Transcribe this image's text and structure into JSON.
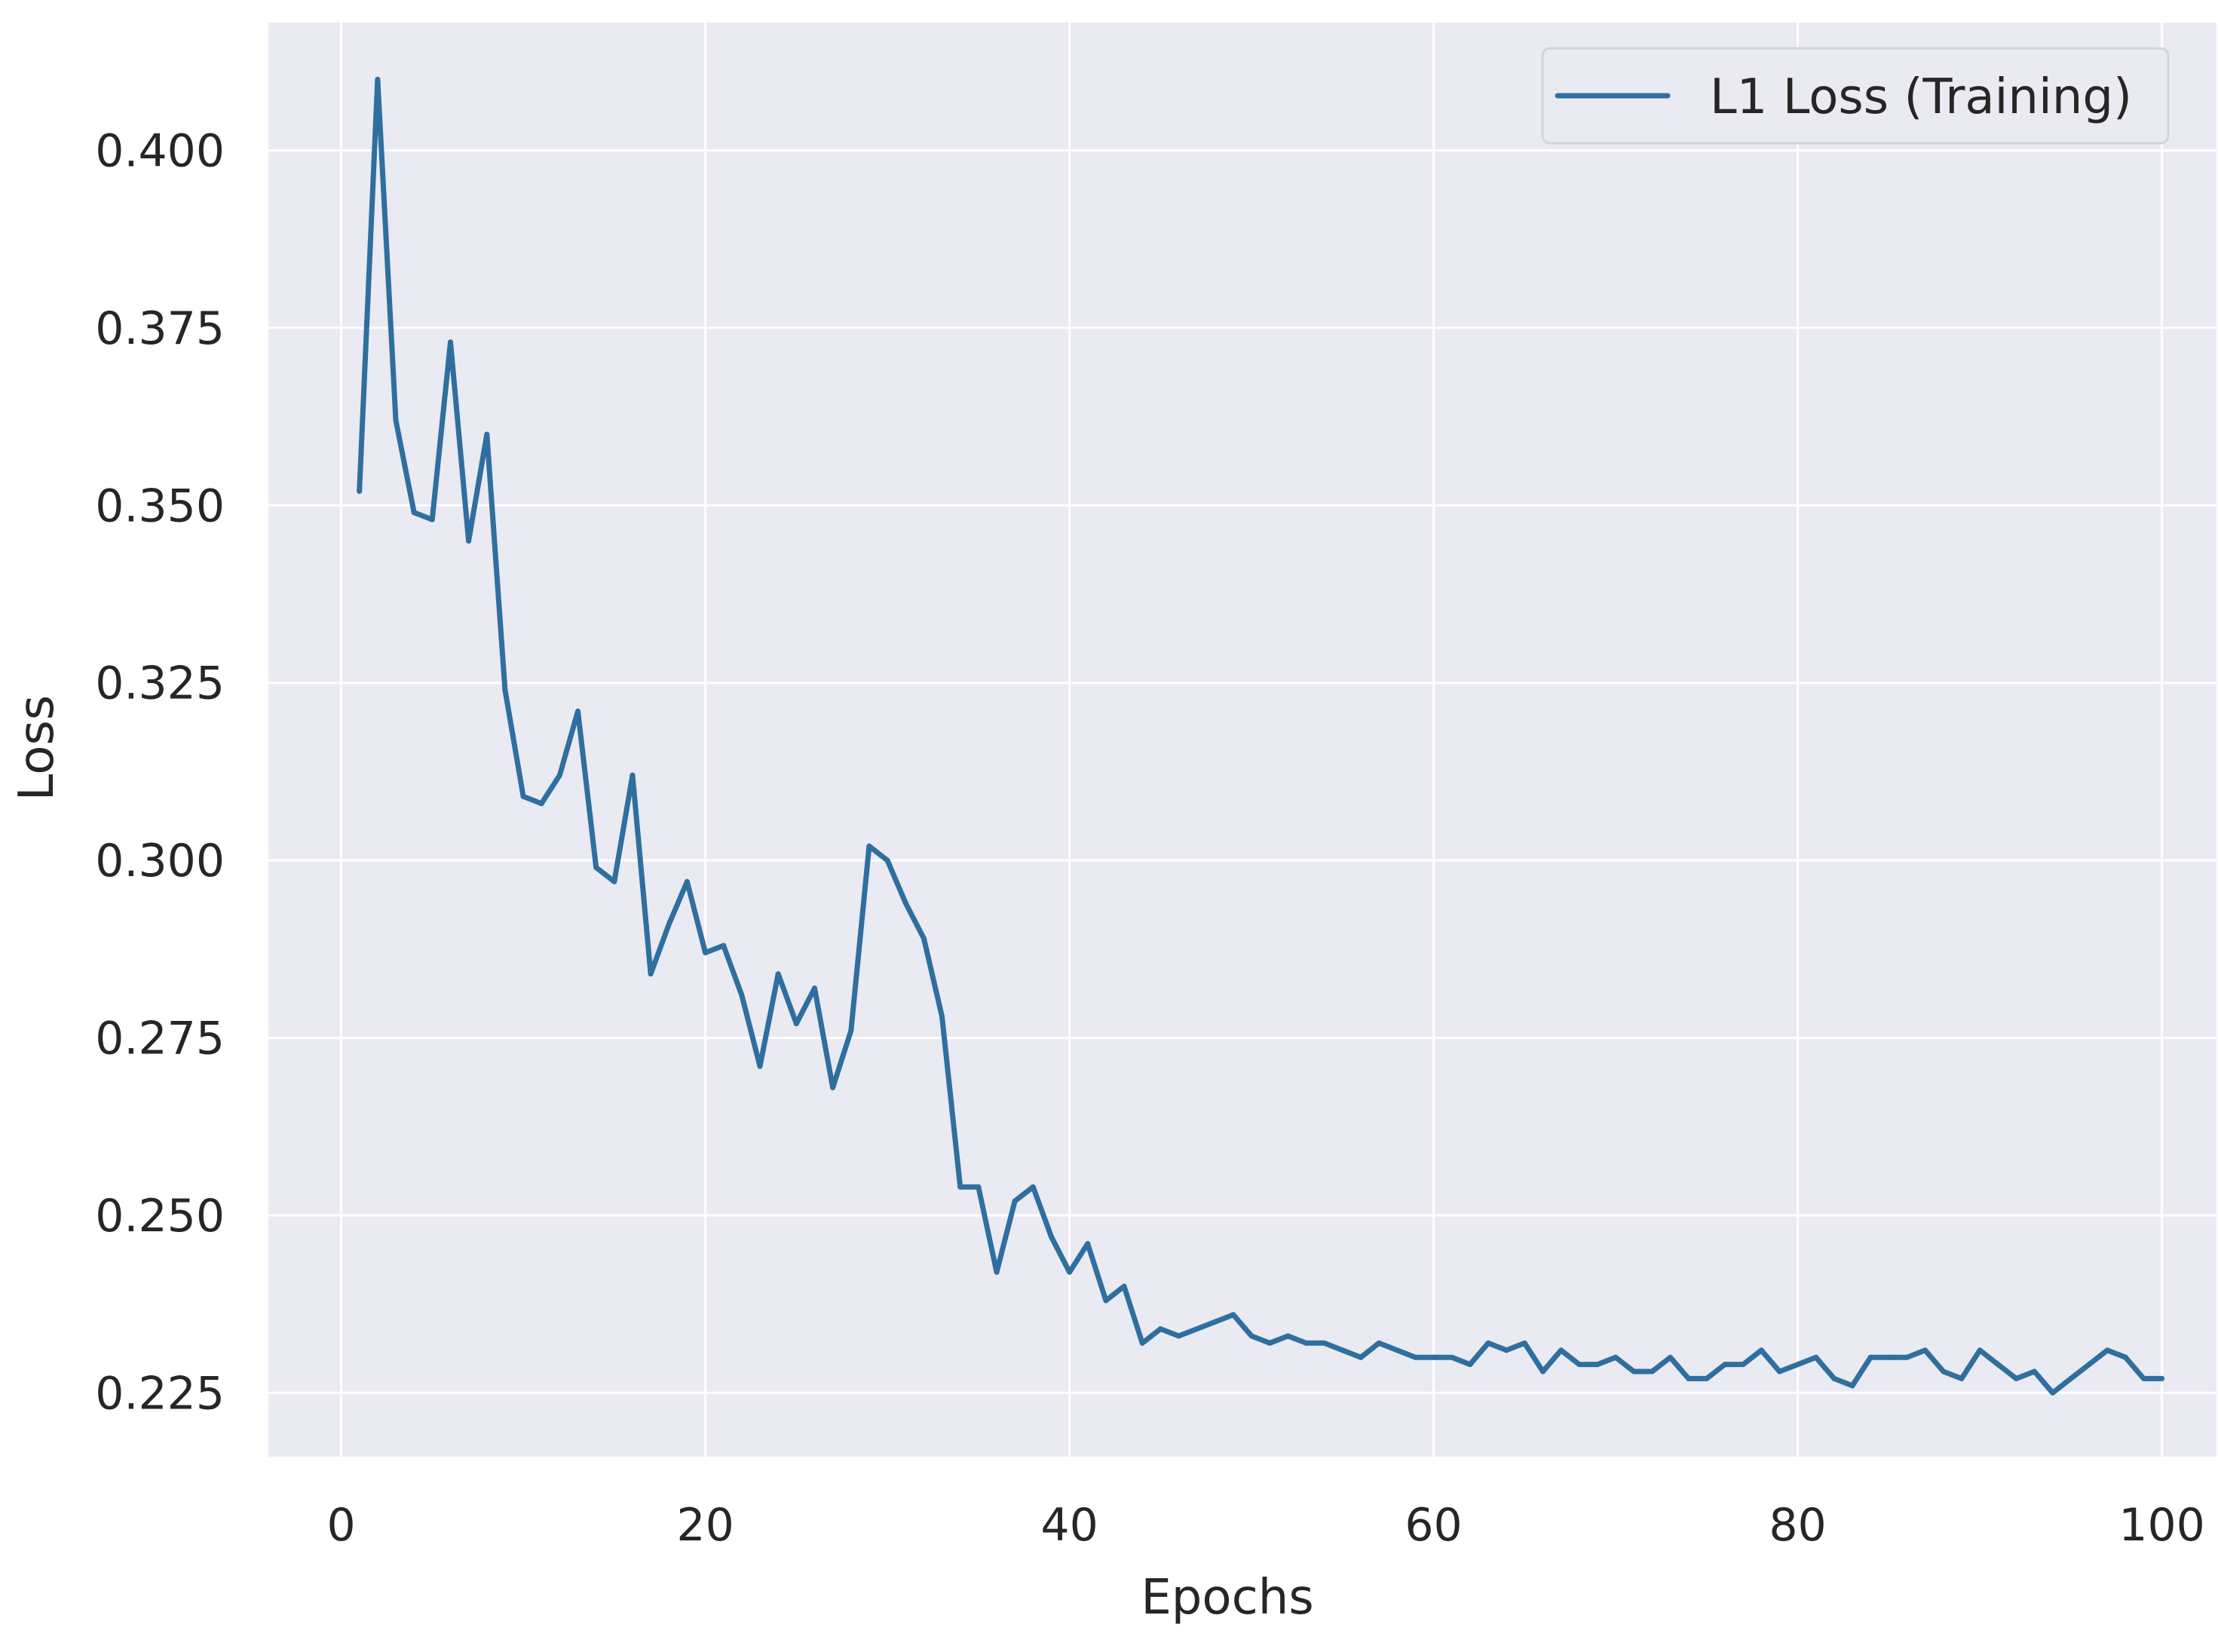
{
  "chart_data": {
    "type": "line",
    "title": "",
    "xlabel": "Epochs",
    "ylabel": "Loss",
    "xlim": [
      -4,
      103
    ],
    "ylim": [
      0.216,
      0.418
    ],
    "x_ticks": [
      0,
      20,
      40,
      60,
      80,
      100
    ],
    "y_ticks": [
      0.225,
      0.25,
      0.275,
      0.3,
      0.325,
      0.35,
      0.375,
      0.4
    ],
    "x_tick_labels": [
      "0",
      "20",
      "40",
      "60",
      "80",
      "100"
    ],
    "y_tick_labels": [
      "0.225",
      "0.250",
      "0.275",
      "0.300",
      "0.325",
      "0.350",
      "0.375",
      "0.400"
    ],
    "grid": true,
    "background": "#eaeaf2",
    "grid_color": "#ffffff",
    "legend": {
      "position": "top-right",
      "entries": [
        "L1 Loss (Training)"
      ]
    },
    "series": [
      {
        "name": "L1 Loss (Training)",
        "color": "#2f6f9f",
        "x": [
          1,
          2,
          3,
          4,
          5,
          6,
          7,
          8,
          9,
          10,
          11,
          12,
          13,
          14,
          15,
          16,
          17,
          18,
          19,
          20,
          21,
          22,
          23,
          24,
          25,
          26,
          27,
          28,
          29,
          30,
          31,
          32,
          33,
          34,
          35,
          36,
          37,
          38,
          39,
          40,
          41,
          42,
          43,
          44,
          45,
          46,
          47,
          48,
          49,
          50,
          51,
          52,
          53,
          54,
          55,
          56,
          57,
          58,
          59,
          60,
          61,
          62,
          63,
          64,
          65,
          66,
          67,
          68,
          69,
          70,
          71,
          72,
          73,
          74,
          75,
          76,
          77,
          78,
          79,
          80,
          81,
          82,
          83,
          84,
          85,
          86,
          87,
          88,
          89,
          90,
          91,
          92,
          93,
          94,
          95,
          96,
          97,
          98,
          99,
          100
        ],
        "y": [
          0.352,
          0.41,
          0.362,
          0.349,
          0.348,
          0.373,
          0.345,
          0.36,
          0.324,
          0.309,
          0.308,
          0.312,
          0.321,
          0.299,
          0.297,
          0.312,
          0.284,
          0.291,
          0.297,
          0.287,
          0.288,
          0.281,
          0.271,
          0.284,
          0.277,
          0.282,
          0.268,
          0.276,
          0.302,
          0.3,
          0.294,
          0.289,
          0.278,
          0.254,
          0.254,
          0.242,
          0.252,
          0.254,
          0.247,
          0.242,
          0.246,
          0.238,
          0.24,
          0.232,
          0.234,
          0.233,
          0.234,
          0.235,
          0.236,
          0.233,
          0.232,
          0.233,
          0.232,
          0.232,
          0.231,
          0.23,
          0.232,
          0.231,
          0.23,
          0.23,
          0.23,
          0.229,
          0.232,
          0.231,
          0.232,
          0.228,
          0.231,
          0.229,
          0.229,
          0.23,
          0.228,
          0.228,
          0.23,
          0.227,
          0.227,
          0.229,
          0.229,
          0.231,
          0.228,
          0.229,
          0.23,
          0.227,
          0.226,
          0.23,
          0.23,
          0.23,
          0.231,
          0.228,
          0.227,
          0.231,
          0.229,
          0.227,
          0.228,
          0.225,
          0.227,
          0.229,
          0.231,
          0.23,
          0.227,
          0.227
        ]
      }
    ]
  }
}
